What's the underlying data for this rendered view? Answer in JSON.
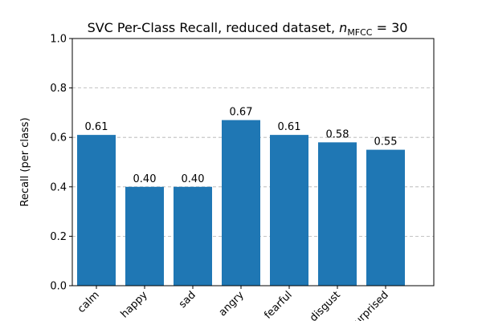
{
  "chart_data": {
    "type": "bar",
    "title": {
      "main": "SVC Per-Class Recall, reduced dataset, ",
      "var": "n",
      "sub": "MFCC",
      "eq": " = 30"
    },
    "xlabel": "",
    "ylabel": "Recall (per class)",
    "categories": [
      "calm",
      "happy",
      "sad",
      "angry",
      "fearful",
      "disgust",
      "surprised"
    ],
    "values": [
      0.61,
      0.4,
      0.4,
      0.67,
      0.61,
      0.58,
      0.55
    ],
    "value_labels": [
      "0.61",
      "0.40",
      "0.40",
      "0.67",
      "0.61",
      "0.58",
      "0.55"
    ],
    "ylim": [
      0,
      1.0
    ],
    "yticks": [
      0.0,
      0.2,
      0.4,
      0.6,
      0.8,
      1.0
    ],
    "ytick_labels": [
      "0.0",
      "0.2",
      "0.4",
      "0.6",
      "0.8",
      "1.0"
    ],
    "grid": "y-dashed",
    "legend": "none",
    "bar_color": "#1f77b4"
  }
}
